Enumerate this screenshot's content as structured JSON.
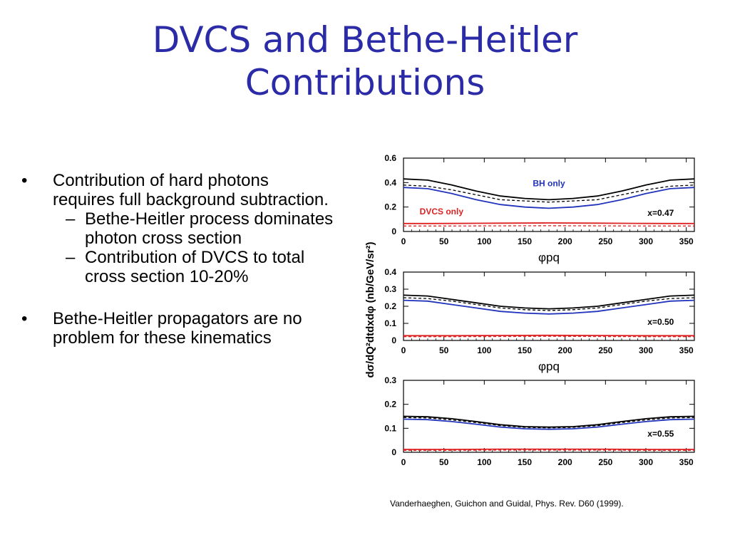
{
  "slide": {
    "title_lines": [
      "DVCS and Bethe-Heitler",
      "Contributions"
    ],
    "bullets": [
      {
        "marker": "•",
        "text": "Contribution of hard photons requires full background subtraction.",
        "sub": [
          {
            "marker": "–",
            "text": "Bethe-Heitler process dominates photon cross section"
          },
          {
            "marker": "–",
            "text": "Contribution of DVCS to total cross section 10-20%"
          }
        ]
      },
      {
        "marker": "•",
        "text": "Bethe-Heitler propagators are no problem for these kinematics",
        "sub": []
      }
    ],
    "citation": "Vanderhaeghen, Guichon and Guidal, Phys. Rev. D60 (1999)."
  },
  "colors": {
    "title": "#2b2ba8",
    "total": "#000000",
    "bh": "#2233bb",
    "dvcs": "#dd2222"
  },
  "chart_data": [
    {
      "type": "line",
      "ylabel": "dσ/dQ²dtdxdφ (nb/GeV/sr²)",
      "xlabel": "φpq",
      "xlim": [
        0,
        360
      ],
      "ylim": [
        0,
        0.6
      ],
      "xticks": [
        0,
        50,
        100,
        150,
        200,
        250,
        300,
        350
      ],
      "yticks": [
        0,
        0.2,
        0.4,
        0.6
      ],
      "ytick_labels": [
        "0",
        "0.2",
        "0.4",
        "0.6"
      ],
      "annotation": "x=0.47",
      "series_labels": {
        "bh": "BH only",
        "dvcs": "DVCS only"
      },
      "series": [
        {
          "x": [
            0,
            30,
            60,
            90,
            120,
            150,
            180,
            210,
            240,
            270,
            300,
            330,
            360
          ],
          "y": [
            0.43,
            0.42,
            0.38,
            0.33,
            0.29,
            0.27,
            0.26,
            0.27,
            0.29,
            0.33,
            0.38,
            0.42,
            0.43
          ],
          "role": "total",
          "style": "solid"
        },
        {
          "x": [
            0,
            30,
            60,
            90,
            120,
            150,
            180,
            210,
            240,
            270,
            300,
            330,
            360
          ],
          "y": [
            0.38,
            0.37,
            0.34,
            0.3,
            0.26,
            0.25,
            0.24,
            0.25,
            0.26,
            0.3,
            0.34,
            0.37,
            0.38
          ],
          "role": "total",
          "style": "dashed"
        },
        {
          "x": [
            0,
            30,
            60,
            90,
            120,
            150,
            180,
            210,
            240,
            270,
            300,
            330,
            360
          ],
          "y": [
            0.36,
            0.35,
            0.31,
            0.26,
            0.22,
            0.2,
            0.19,
            0.2,
            0.22,
            0.26,
            0.31,
            0.35,
            0.36
          ],
          "role": "bh",
          "style": "solid"
        },
        {
          "x": [
            0,
            30,
            60,
            90,
            120,
            150,
            180,
            210,
            240,
            270,
            300,
            330,
            360
          ],
          "y": [
            0.065,
            0.065,
            0.066,
            0.067,
            0.068,
            0.069,
            0.07,
            0.069,
            0.068,
            0.067,
            0.066,
            0.065,
            0.065
          ],
          "role": "dvcs",
          "style": "solid"
        },
        {
          "x": [
            0,
            60,
            120,
            180,
            240,
            300,
            360
          ],
          "y": [
            0.045,
            0.045,
            0.046,
            0.047,
            0.046,
            0.045,
            0.045
          ],
          "role": "dvcs",
          "style": "dashed"
        }
      ]
    },
    {
      "type": "line",
      "ylabel": "dσ/dQ²dtdxdφ (nb/GeV/sr²)",
      "xlabel": "φpq",
      "xlim": [
        0,
        360
      ],
      "ylim": [
        0,
        0.4
      ],
      "xticks": [
        0,
        50,
        100,
        150,
        200,
        250,
        300,
        350
      ],
      "yticks": [
        0,
        0.1,
        0.2,
        0.3,
        0.4
      ],
      "ytick_labels": [
        "0",
        "0.1",
        "0.2",
        "0.3",
        "0.4"
      ],
      "annotation": "x=0.50",
      "series": [
        {
          "x": [
            0,
            30,
            60,
            90,
            120,
            150,
            180,
            210,
            240,
            270,
            300,
            330,
            360
          ],
          "y": [
            0.265,
            0.26,
            0.24,
            0.22,
            0.2,
            0.19,
            0.185,
            0.19,
            0.2,
            0.22,
            0.24,
            0.26,
            0.265
          ],
          "role": "total",
          "style": "solid"
        },
        {
          "x": [
            0,
            30,
            60,
            90,
            120,
            150,
            180,
            210,
            240,
            270,
            300,
            330,
            360
          ],
          "y": [
            0.25,
            0.245,
            0.23,
            0.21,
            0.19,
            0.18,
            0.175,
            0.18,
            0.19,
            0.21,
            0.23,
            0.245,
            0.25
          ],
          "role": "total",
          "style": "dashed"
        },
        {
          "x": [
            0,
            30,
            60,
            90,
            120,
            150,
            180,
            210,
            240,
            270,
            300,
            330,
            360
          ],
          "y": [
            0.235,
            0.23,
            0.21,
            0.19,
            0.17,
            0.16,
            0.155,
            0.16,
            0.17,
            0.19,
            0.21,
            0.23,
            0.235
          ],
          "role": "bh",
          "style": "solid"
        },
        {
          "x": [
            0,
            60,
            120,
            180,
            240,
            300,
            360
          ],
          "y": [
            0.028,
            0.028,
            0.029,
            0.03,
            0.029,
            0.028,
            0.028
          ],
          "role": "dvcs",
          "style": "solid"
        },
        {
          "x": [
            0,
            60,
            120,
            180,
            240,
            300,
            360
          ],
          "y": [
            0.022,
            0.022,
            0.023,
            0.024,
            0.023,
            0.022,
            0.022
          ],
          "role": "dvcs",
          "style": "dashed"
        }
      ]
    },
    {
      "type": "line",
      "ylabel": "dσ/dQ²dtdxdφ (nb/GeV/sr²)",
      "xlabel": "",
      "xlim": [
        0,
        360
      ],
      "ylim": [
        0,
        0.3
      ],
      "xticks": [
        0,
        50,
        100,
        150,
        200,
        250,
        300,
        350
      ],
      "yticks": [
        0,
        0.1,
        0.2,
        0.3
      ],
      "ytick_labels": [
        "0",
        "0.1",
        "0.2",
        "0.3"
      ],
      "annotation": "x=0.55",
      "series": [
        {
          "x": [
            0,
            30,
            60,
            90,
            120,
            150,
            180,
            210,
            240,
            270,
            300,
            330,
            360
          ],
          "y": [
            0.15,
            0.148,
            0.14,
            0.128,
            0.115,
            0.107,
            0.105,
            0.107,
            0.115,
            0.128,
            0.14,
            0.148,
            0.15
          ],
          "role": "total",
          "style": "solid"
        },
        {
          "x": [
            0,
            30,
            60,
            90,
            120,
            150,
            180,
            210,
            240,
            270,
            300,
            330,
            360
          ],
          "y": [
            0.145,
            0.143,
            0.135,
            0.124,
            0.111,
            0.104,
            0.102,
            0.104,
            0.111,
            0.124,
            0.135,
            0.143,
            0.145
          ],
          "role": "total",
          "style": "dashed"
        },
        {
          "x": [
            0,
            30,
            60,
            90,
            120,
            150,
            180,
            210,
            240,
            270,
            300,
            330,
            360
          ],
          "y": [
            0.138,
            0.136,
            0.128,
            0.117,
            0.105,
            0.098,
            0.096,
            0.098,
            0.105,
            0.117,
            0.128,
            0.136,
            0.138
          ],
          "role": "bh",
          "style": "solid"
        },
        {
          "x": [
            0,
            60,
            120,
            180,
            240,
            300,
            360
          ],
          "y": [
            0.012,
            0.012,
            0.013,
            0.013,
            0.013,
            0.012,
            0.012
          ],
          "role": "dvcs",
          "style": "solid"
        },
        {
          "x": [
            0,
            60,
            120,
            180,
            240,
            300,
            360
          ],
          "y": [
            0.008,
            0.008,
            0.009,
            0.009,
            0.009,
            0.008,
            0.008
          ],
          "role": "dvcs",
          "style": "dashed"
        }
      ]
    }
  ]
}
